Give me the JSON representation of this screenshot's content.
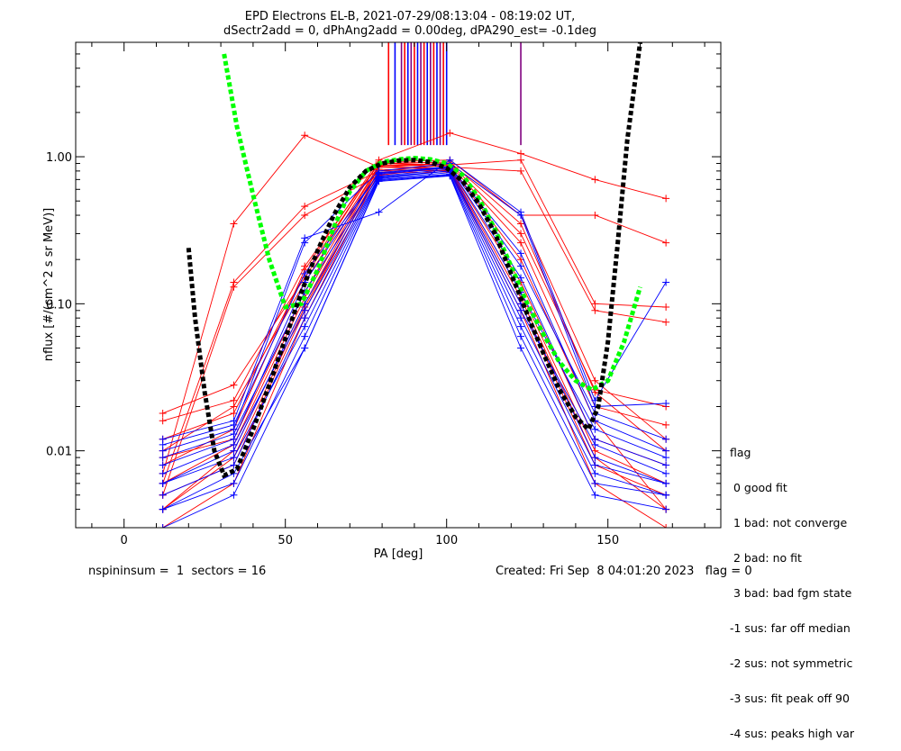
{
  "chart_data": {
    "type": "line",
    "title": "EPD Electrons EL-B, 2021-07-29/08:13:04 - 08:19:02 UT,",
    "subtitle": "dSectr2add = 0, dPhAng2add = 0.00deg, dPA290_est=  -0.1deg",
    "xlabel": "PA [deg]",
    "ylabel": "nflux [#/(cm^2 s sr MeV)]",
    "xlim": [
      -15,
      185
    ],
    "ylim": [
      0.003,
      6.0
    ],
    "yscale": "log",
    "x_ticks": [
      "0",
      "50",
      "100",
      "150"
    ],
    "x_tick_values": [
      0,
      50,
      100,
      150
    ],
    "y_ticks": [
      "0.01",
      "0.10",
      "1.00"
    ],
    "y_tick_values": [
      0.01,
      0.1,
      1.0
    ],
    "series": [
      {
        "color": "#ff0000",
        "style": "line+plus",
        "x": [
          12,
          34,
          56,
          79,
          101,
          123,
          146,
          168
        ],
        "curves": [
          [
            0.018,
            0.028,
            0.15,
            0.92,
            0.95,
            0.4,
            0.03,
            0.012
          ],
          [
            0.016,
            0.022,
            0.18,
            0.9,
            0.92,
            0.35,
            0.025,
            0.01
          ],
          [
            0.008,
            0.014,
            0.17,
            0.95,
            1.45,
            1.05,
            0.7,
            0.52
          ],
          [
            0.007,
            0.35,
            1.4,
            0.85,
            0.9,
            0.4,
            0.4,
            0.26
          ],
          [
            0.006,
            0.14,
            0.46,
            0.8,
            0.88,
            0.95,
            0.1,
            0.095
          ],
          [
            0.005,
            0.13,
            0.4,
            0.75,
            0.85,
            0.8,
            0.09,
            0.075
          ],
          [
            0.004,
            0.01,
            0.1,
            0.85,
            0.82,
            0.12,
            0.01,
            0.006
          ],
          [
            0.009,
            0.012,
            0.12,
            0.88,
            0.86,
            0.2,
            0.016,
            0.004
          ],
          [
            0.005,
            0.008,
            0.09,
            0.82,
            0.8,
            0.1,
            0.008,
            0.005
          ],
          [
            0.012,
            0.018,
            0.16,
            0.9,
            0.88,
            0.26,
            0.02,
            0.015
          ],
          [
            0.003,
            0.006,
            0.08,
            0.78,
            0.79,
            0.09,
            0.006,
            0.003
          ],
          [
            0.01,
            0.02,
            0.14,
            0.87,
            0.9,
            0.3,
            0.026,
            0.02
          ],
          [
            0.006,
            0.011,
            0.11,
            0.86,
            0.83,
            0.14,
            0.012,
            0.008
          ],
          [
            0.004,
            0.009,
            0.095,
            0.8,
            0.81,
            0.11,
            0.009,
            0.004
          ]
        ]
      },
      {
        "color": "#0000ff",
        "style": "line+plus",
        "x": [
          12,
          34,
          56,
          79,
          101,
          123,
          146,
          168
        ],
        "curves": [
          [
            0.012,
            0.016,
            0.28,
            0.42,
            0.95,
            0.42,
            0.022,
            0.14
          ],
          [
            0.01,
            0.014,
            0.26,
            0.8,
            0.9,
            0.4,
            0.02,
            0.021
          ],
          [
            0.008,
            0.012,
            0.14,
            0.78,
            0.86,
            0.22,
            0.016,
            0.01
          ],
          [
            0.006,
            0.01,
            0.1,
            0.76,
            0.84,
            0.15,
            0.012,
            0.008
          ],
          [
            0.005,
            0.008,
            0.08,
            0.72,
            0.8,
            0.1,
            0.009,
            0.006
          ],
          [
            0.004,
            0.006,
            0.06,
            0.7,
            0.76,
            0.07,
            0.007,
            0.005
          ],
          [
            0.003,
            0.005,
            0.05,
            0.68,
            0.74,
            0.05,
            0.005,
            0.004
          ],
          [
            0.009,
            0.013,
            0.12,
            0.74,
            0.82,
            0.12,
            0.014,
            0.009
          ],
          [
            0.007,
            0.011,
            0.09,
            0.73,
            0.8,
            0.09,
            0.011,
            0.007
          ],
          [
            0.011,
            0.015,
            0.16,
            0.77,
            0.85,
            0.18,
            0.018,
            0.012
          ],
          [
            0.006,
            0.009,
            0.07,
            0.71,
            0.78,
            0.08,
            0.008,
            0.006
          ],
          [
            0.004,
            0.007,
            0.05,
            0.69,
            0.75,
            0.06,
            0.006,
            0.005
          ]
        ]
      },
      {
        "name": "",
        "color": "#00ff00",
        "style": "dashed-fit",
        "x": [
          31,
          35,
          40,
          45,
          50,
          55,
          60,
          65,
          70,
          75,
          80,
          85,
          90,
          95,
          100,
          105,
          110,
          115,
          120,
          125,
          130,
          135,
          140,
          145,
          150,
          155,
          160
        ],
        "y": [
          5.0,
          1.6,
          0.55,
          0.2,
          0.095,
          0.1,
          0.17,
          0.33,
          0.58,
          0.8,
          0.92,
          0.96,
          0.98,
          0.96,
          0.9,
          0.75,
          0.52,
          0.32,
          0.18,
          0.1,
          0.062,
          0.04,
          0.03,
          0.026,
          0.03,
          0.055,
          0.13
        ]
      },
      {
        "name": "",
        "color": "#000000",
        "style": "dashed-fit",
        "x": [
          20,
          22,
          25,
          28,
          31,
          35,
          40,
          45,
          50,
          55,
          60,
          65,
          70,
          75,
          80,
          85,
          90,
          95,
          100,
          105,
          110,
          115,
          120,
          125,
          130,
          135,
          140,
          144,
          147,
          150,
          153,
          156,
          160
        ],
        "y": [
          0.24,
          0.08,
          0.025,
          0.01,
          0.0068,
          0.0075,
          0.014,
          0.028,
          0.058,
          0.12,
          0.23,
          0.4,
          0.62,
          0.8,
          0.9,
          0.94,
          0.95,
          0.92,
          0.84,
          0.68,
          0.48,
          0.3,
          0.16,
          0.085,
          0.046,
          0.026,
          0.017,
          0.014,
          0.02,
          0.055,
          0.25,
          1.3,
          6.0
        ]
      }
    ],
    "vertical_lines": {
      "color_mix": [
        "#ff0000",
        "#0000ff",
        "#800080"
      ],
      "x": [
        82,
        84,
        86,
        87,
        88,
        89,
        90,
        91,
        92,
        93,
        94,
        95,
        96,
        97,
        98,
        99,
        100,
        123
      ],
      "y_bottom": 1.2,
      "y_top": 6.0
    }
  },
  "legend": {
    "heading": "flag",
    "items": [
      " 0 good fit",
      " 1 bad: not converge",
      " 2 bad: no fit",
      " 3 bad: bad fgm state",
      "-1 sus: far off median",
      "-2 sus: not symmetric",
      "-3 sus: fit peak off 90",
      "-4 sus: peaks high var"
    ]
  },
  "footer": {
    "left": "nspininsum =  1  sectors = 16",
    "right": "Created: Fri Sep  8 04:01:20 2023   flag = 0"
  }
}
